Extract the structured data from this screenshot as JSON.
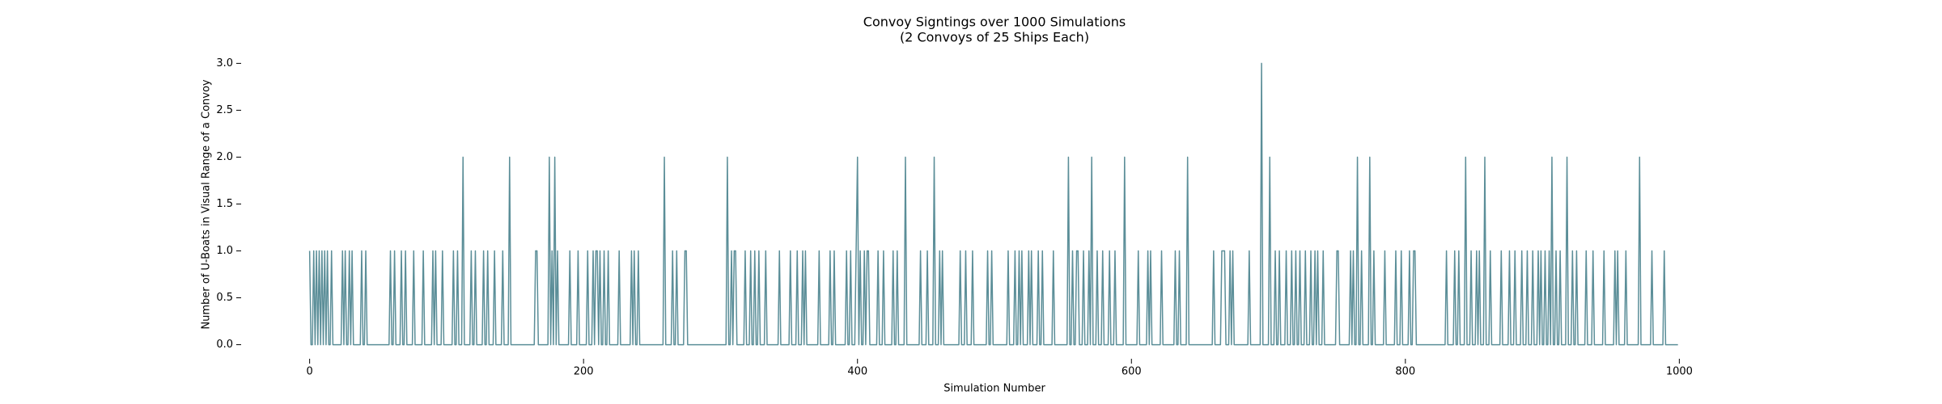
{
  "chart_data": {
    "type": "line",
    "title": "Convoy Signtings over 1000 Simulations",
    "subtitle": "(2 Convoys of 25 Ships Each)",
    "x_label": "Simulation Number",
    "y_label": "Number of U-Boats in Visual Range of a Convoy",
    "color": "#5b8e98",
    "xlim": [
      -50,
      1050
    ],
    "ylim": [
      -0.15,
      3.15
    ],
    "xticks": [
      0,
      200,
      400,
      600,
      800,
      1000
    ],
    "yticks": [
      {
        "value": 0,
        "label": "0.0"
      },
      0.5,
      {
        "value": 1,
        "label": "1.0"
      },
      1.5,
      {
        "value": 2,
        "label": "2.0"
      },
      2.5,
      {
        "value": 3,
        "label": "3.0"
      }
    ],
    "grid": false,
    "values": [
      1,
      0,
      0,
      1,
      0,
      1,
      0,
      1,
      0,
      1,
      0,
      1,
      0,
      1,
      0,
      0,
      1,
      0,
      0,
      0,
      0,
      0,
      0,
      0,
      1,
      0,
      1,
      0,
      0,
      1,
      0,
      1,
      0,
      0,
      0,
      0,
      0,
      0,
      1,
      0,
      0,
      1,
      0,
      0,
      0,
      0,
      0,
      0,
      0,
      0,
      0,
      0,
      0,
      0,
      0,
      0,
      0,
      0,
      0,
      1,
      0,
      0,
      1,
      0,
      0,
      0,
      0,
      1,
      0,
      0,
      1,
      0,
      0,
      0,
      0,
      0,
      1,
      0,
      0,
      0,
      0,
      0,
      0,
      1,
      0,
      0,
      0,
      0,
      0,
      0,
      1,
      0,
      1,
      0,
      0,
      0,
      0,
      1,
      0,
      0,
      0,
      0,
      0,
      0,
      0,
      1,
      0,
      0,
      1,
      0,
      0,
      0,
      2,
      0,
      0,
      0,
      0,
      0,
      1,
      0,
      0,
      1,
      0,
      0,
      0,
      0,
      0,
      1,
      0,
      0,
      1,
      0,
      0,
      0,
      0,
      1,
      0,
      0,
      0,
      0,
      0,
      1,
      0,
      0,
      0,
      0,
      2,
      0,
      0,
      0,
      0,
      0,
      0,
      0,
      0,
      0,
      0,
      0,
      0,
      0,
      0,
      0,
      0,
      0,
      0,
      1,
      1,
      0,
      0,
      0,
      0,
      0,
      0,
      0,
      0,
      2,
      0,
      1,
      0,
      2,
      0,
      1,
      0,
      0,
      0,
      0,
      0,
      0,
      0,
      0,
      1,
      0,
      0,
      0,
      0,
      0,
      1,
      0,
      0,
      0,
      0,
      0,
      0,
      1,
      0,
      0,
      0,
      1,
      0,
      1,
      1,
      0,
      1,
      0,
      0,
      1,
      0,
      0,
      1,
      0,
      0,
      0,
      0,
      0,
      0,
      0,
      1,
      0,
      0,
      0,
      0,
      0,
      0,
      0,
      0,
      1,
      0,
      1,
      0,
      0,
      1,
      0,
      0,
      0,
      0,
      0,
      0,
      0,
      0,
      0,
      0,
      0,
      0,
      0,
      0,
      0,
      0,
      0,
      0,
      2,
      0,
      0,
      0,
      0,
      0,
      1,
      0,
      0,
      1,
      0,
      0,
      0,
      0,
      0,
      1,
      1,
      0,
      0,
      0,
      0,
      0,
      0,
      0,
      0,
      0,
      0,
      0,
      0,
      0,
      0,
      0,
      0,
      0,
      0,
      0,
      0,
      0,
      0,
      0,
      0,
      0,
      0,
      0,
      0,
      0,
      2,
      0,
      0,
      1,
      0,
      1,
      1,
      0,
      0,
      0,
      0,
      0,
      0,
      1,
      0,
      0,
      0,
      1,
      0,
      0,
      1,
      0,
      0,
      1,
      0,
      0,
      0,
      0,
      1,
      0,
      0,
      0,
      0,
      0,
      0,
      0,
      0,
      0,
      1,
      0,
      0,
      0,
      0,
      0,
      0,
      0,
      1,
      0,
      0,
      0,
      0,
      1,
      0,
      0,
      0,
      1,
      0,
      1,
      0,
      0,
      0,
      0,
      0,
      0,
      0,
      0,
      0,
      1,
      0,
      0,
      0,
      0,
      0,
      0,
      0,
      1,
      0,
      0,
      1,
      0,
      0,
      0,
      0,
      0,
      0,
      0,
      0,
      1,
      0,
      0,
      1,
      0,
      0,
      0,
      1,
      2,
      0,
      1,
      0,
      0,
      1,
      0,
      1,
      1,
      0,
      0,
      0,
      0,
      0,
      0,
      1,
      0,
      0,
      0,
      1,
      0,
      0,
      0,
      0,
      0,
      0,
      1,
      0,
      0,
      1,
      0,
      0,
      0,
      0,
      0,
      2,
      0,
      0,
      0,
      0,
      0,
      0,
      0,
      0,
      0,
      0,
      1,
      0,
      0,
      0,
      0,
      1,
      0,
      0,
      0,
      0,
      2,
      0,
      0,
      0,
      1,
      0,
      1,
      0,
      0,
      0,
      0,
      0,
      0,
      0,
      0,
      0,
      0,
      0,
      0,
      1,
      0,
      0,
      0,
      1,
      0,
      0,
      0,
      0,
      1,
      0,
      0,
      0,
      0,
      0,
      0,
      0,
      0,
      0,
      0,
      1,
      0,
      0,
      1,
      0,
      0,
      0,
      0,
      0,
      0,
      0,
      0,
      0,
      0,
      0,
      1,
      0,
      0,
      0,
      0,
      1,
      0,
      0,
      1,
      0,
      1,
      0,
      0,
      0,
      0,
      1,
      0,
      1,
      0,
      0,
      0,
      0,
      1,
      0,
      0,
      1,
      0,
      0,
      0,
      0,
      0,
      0,
      0,
      1,
      0,
      0,
      0,
      0,
      0,
      0,
      0,
      0,
      0,
      0,
      2,
      0,
      0,
      1,
      0,
      0,
      1,
      1,
      0,
      0,
      0,
      1,
      0,
      0,
      0,
      1,
      0,
      2,
      0,
      0,
      0,
      1,
      0,
      0,
      0,
      1,
      0,
      0,
      0,
      0,
      1,
      0,
      0,
      0,
      1,
      0,
      0,
      0,
      0,
      0,
      0,
      2,
      0,
      0,
      0,
      0,
      0,
      0,
      0,
      0,
      0,
      1,
      0,
      0,
      0,
      0,
      0,
      0,
      1,
      0,
      1,
      0,
      0,
      0,
      0,
      0,
      0,
      0,
      1,
      0,
      0,
      0,
      0,
      0,
      0,
      0,
      0,
      0,
      1,
      0,
      0,
      1,
      0,
      0,
      0,
      0,
      0,
      2,
      0,
      0,
      0,
      0,
      0,
      0,
      0,
      0,
      0,
      0,
      0,
      0,
      0,
      0,
      0,
      0,
      0,
      0,
      1,
      0,
      0,
      0,
      0,
      0,
      1,
      1,
      1,
      0,
      0,
      0,
      1,
      0,
      1,
      0,
      0,
      0,
      0,
      0,
      0,
      0,
      0,
      0,
      0,
      0,
      1,
      0,
      0,
      0,
      0,
      0,
      0,
      0,
      0,
      3,
      0,
      0,
      0,
      0,
      0,
      2,
      0,
      0,
      0,
      1,
      0,
      0,
      1,
      0,
      0,
      0,
      0,
      1,
      0,
      0,
      0,
      1,
      0,
      0,
      1,
      0,
      0,
      1,
      0,
      0,
      0,
      1,
      0,
      0,
      0,
      1,
      0,
      0,
      1,
      0,
      1,
      0,
      0,
      0,
      1,
      0,
      0,
      0,
      0,
      0,
      0,
      0,
      0,
      0,
      1,
      1,
      0,
      0,
      0,
      0,
      0,
      0,
      0,
      0,
      1,
      0,
      1,
      0,
      0,
      2,
      0,
      0,
      1,
      0,
      0,
      0,
      0,
      0,
      2,
      0,
      0,
      1,
      0,
      0,
      0,
      0,
      0,
      0,
      0,
      1,
      0,
      0,
      0,
      0,
      0,
      0,
      0,
      1,
      0,
      0,
      0,
      1,
      0,
      0,
      0,
      0,
      0,
      1,
      0,
      0,
      1,
      1,
      0,
      0,
      0,
      0,
      0,
      0,
      0,
      0,
      0,
      0,
      0,
      0,
      0,
      0,
      0,
      0,
      0,
      0,
      0,
      0,
      0,
      0,
      1,
      0,
      0,
      0,
      0,
      0,
      1,
      0,
      0,
      1,
      0,
      0,
      0,
      0,
      2,
      0,
      0,
      0,
      1,
      0,
      0,
      0,
      1,
      0,
      1,
      0,
      0,
      0,
      2,
      0,
      0,
      0,
      1,
      0,
      0,
      0,
      0,
      0,
      0,
      0,
      1,
      0,
      0,
      0,
      0,
      0,
      1,
      0,
      0,
      0,
      1,
      0,
      0,
      0,
      0,
      1,
      0,
      0,
      0,
      1,
      0,
      0,
      0,
      1,
      0,
      0,
      0,
      1,
      0,
      1,
      0,
      0,
      1,
      0,
      0,
      1,
      0,
      2,
      0,
      0,
      1,
      0,
      0,
      1,
      0,
      0,
      0,
      0,
      2,
      0,
      0,
      0,
      1,
      0,
      0,
      1,
      0,
      0,
      0,
      0,
      0,
      0,
      1,
      0,
      0,
      0,
      0,
      1,
      0,
      0,
      0,
      0,
      0,
      0,
      0,
      1,
      0,
      0,
      0,
      0,
      0,
      0,
      0,
      1,
      0,
      1,
      0,
      0,
      0,
      0,
      0,
      1,
      0,
      0,
      0,
      0,
      0,
      0,
      0,
      0,
      0,
      2,
      0,
      0,
      0,
      0,
      0,
      0,
      0,
      0,
      1,
      0,
      0,
      0,
      0,
      0,
      0,
      0,
      0,
      1,
      0,
      0,
      0,
      0,
      0,
      0,
      0,
      0,
      0,
      0
    ]
  }
}
